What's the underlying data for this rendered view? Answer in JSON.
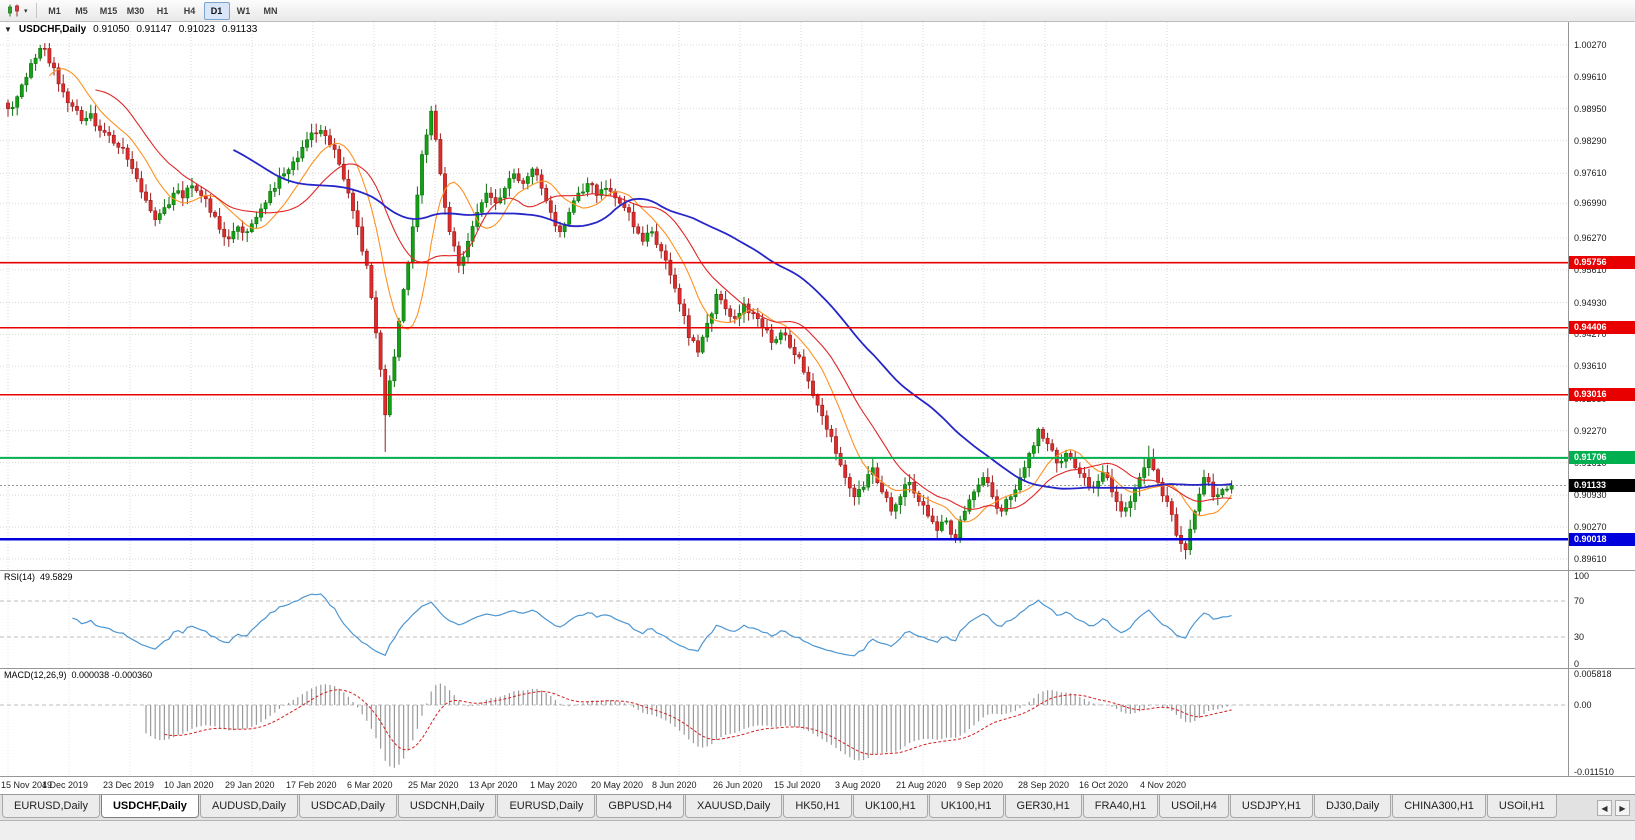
{
  "icons": {
    "one_click_toggle": "▼",
    "chart_dropdown_caret": "▾",
    "tab_scroll_left": "◀",
    "tab_scroll_right": "▶"
  },
  "toolbar": {
    "timeframes": [
      {
        "label": "M1",
        "active": false
      },
      {
        "label": "M5",
        "active": false
      },
      {
        "label": "M15",
        "active": false
      },
      {
        "label": "M30",
        "active": false
      },
      {
        "label": "H1",
        "active": false
      },
      {
        "label": "H4",
        "active": false
      },
      {
        "label": "D1",
        "active": true
      },
      {
        "label": "W1",
        "active": false
      },
      {
        "label": "MN",
        "active": false
      }
    ]
  },
  "chart": {
    "symbol_label": "USDCHF,Daily",
    "ohlc_open": "0.91050",
    "ohlc_high": "0.91147",
    "ohlc_low": "0.91023",
    "ohlc_close": "0.91133",
    "price_axis_labels": [
      "1.00270",
      "0.99610",
      "0.98950",
      "0.98290",
      "0.97610",
      "0.96990",
      "0.96270",
      "0.95610",
      "0.94930",
      "0.94270",
      "0.93610",
      "0.92930",
      "0.92270",
      "0.91610",
      "0.90930",
      "0.90270",
      "0.89610"
    ],
    "levels": [
      {
        "label": "0.95756",
        "value": 0.95756,
        "color": "#e80000",
        "width": 1.6
      },
      {
        "label": "0.94406",
        "value": 0.94406,
        "color": "#e80000",
        "width": 1.6
      },
      {
        "label": "0.93016",
        "value": 0.93016,
        "color": "#e80000",
        "width": 1.6
      },
      {
        "label": "0.91706",
        "value": 0.91706,
        "color": "#00b050",
        "width": 2
      },
      {
        "label": "0.90018",
        "value": 0.90018,
        "color": "#0000dd",
        "width": 2.4
      }
    ],
    "current_price": {
      "label": "0.91133",
      "value": 0.91133
    },
    "date_labels": [
      "15 Nov 2019",
      "4 Dec 2019",
      "23 Dec 2019",
      "10 Jan 2020",
      "29 Jan 2020",
      "17 Feb 2020",
      "6 Mar 2020",
      "25 Mar 2020",
      "13 Apr 2020",
      "1 May 2020",
      "20 May 2020",
      "8 Jun 2020",
      "26 Jun 2020",
      "15 Jul 2020",
      "3 Aug 2020",
      "21 Aug 2020",
      "9 Sep 2020",
      "28 Sep 2020",
      "16 Oct 2020",
      "4 Nov 2020"
    ]
  },
  "rsi": {
    "name": "RSI(14)",
    "value": "49.5829",
    "axis_labels": [
      "100",
      "70",
      "30",
      "0"
    ],
    "levels": [
      70,
      30
    ]
  },
  "macd": {
    "name": "MACD(12,26,9)",
    "values": "0.000038 -0.000360",
    "axis_labels": [
      "0.005818",
      "0.00",
      "-0.011510"
    ]
  },
  "tabs": [
    {
      "label": "EURUSD,Daily",
      "active": false
    },
    {
      "label": "USDCHF,Daily",
      "active": true
    },
    {
      "label": "AUDUSD,Daily",
      "active": false
    },
    {
      "label": "USDCAD,Daily",
      "active": false
    },
    {
      "label": "USDCNH,Daily",
      "active": false
    },
    {
      "label": "EURUSD,Daily",
      "active": false
    },
    {
      "label": "GBPUSD,H4",
      "active": false
    },
    {
      "label": "XAUUSD,Daily",
      "active": false
    },
    {
      "label": "HK50,H1",
      "active": false
    },
    {
      "label": "UK100,H1",
      "active": false
    },
    {
      "label": "UK100,H1",
      "active": false
    },
    {
      "label": "GER30,H1",
      "active": false
    },
    {
      "label": "FRA40,H1",
      "active": false
    },
    {
      "label": "USOil,H4",
      "active": false
    },
    {
      "label": "USDJPY,H1",
      "active": false
    },
    {
      "label": "DJ30,Daily",
      "active": false
    },
    {
      "label": "CHINA300,H1",
      "active": false
    },
    {
      "label": "USOil,H1",
      "active": false
    }
  ],
  "chart_data": {
    "type": "candlestick",
    "symbol": "USDCHF",
    "timeframe": "Daily",
    "ohlc_display": {
      "open": 0.9105,
      "high": 0.91147,
      "low": 0.91023,
      "close": 0.91133
    },
    "price_range": [
      0.8938,
      1.0075
    ],
    "x_range_dates": [
      "15 Nov 2019",
      "18 Nov 2020"
    ],
    "closes": [
      0.9895,
      0.992,
      0.996,
      1.0,
      1.002,
      0.998,
      0.993,
      0.99,
      0.987,
      0.9885,
      0.985,
      0.984,
      0.9815,
      0.979,
      0.975,
      0.9705,
      0.9665,
      0.969,
      0.972,
      0.971,
      0.9735,
      0.9715,
      0.968,
      0.9645,
      0.9625,
      0.965,
      0.964,
      0.967,
      0.97,
      0.973,
      0.976,
      0.9785,
      0.9815,
      0.9845,
      0.985,
      0.982,
      0.978,
      0.972,
      0.965,
      0.957,
      0.943,
      0.926,
      0.938,
      0.952,
      0.965,
      0.98,
      0.989,
      0.976,
      0.964,
      0.957,
      0.962,
      0.968,
      0.972,
      0.97,
      0.973,
      0.976,
      0.974,
      0.977,
      0.973,
      0.968,
      0.964,
      0.968,
      0.972,
      0.974,
      0.9715,
      0.973,
      0.971,
      0.969,
      0.965,
      0.962,
      0.964,
      0.96,
      0.955,
      0.949,
      0.942,
      0.939,
      0.945,
      0.951,
      0.948,
      0.946,
      0.949,
      0.947,
      0.944,
      0.941,
      0.943,
      0.94,
      0.938,
      0.933,
      0.928,
      0.923,
      0.918,
      0.913,
      0.909,
      0.911,
      0.915,
      0.91,
      0.906,
      0.909,
      0.912,
      0.908,
      0.905,
      0.902,
      0.904,
      0.9005,
      0.906,
      0.91,
      0.913,
      0.909,
      0.906,
      0.909,
      0.913,
      0.918,
      0.923,
      0.92,
      0.916,
      0.918,
      0.915,
      0.913,
      0.911,
      0.914,
      0.91,
      0.906,
      0.908,
      0.913,
      0.917,
      0.912,
      0.908,
      0.901,
      0.898,
      0.906,
      0.913,
      0.909,
      0.9105,
      0.9113
    ],
    "spikes": [
      {
        "i": 41,
        "low": 0.9183
      },
      {
        "i": 46,
        "high": 0.9901
      },
      {
        "i": 103,
        "low": 0.8994
      },
      {
        "i": 124,
        "high": 0.9196
      },
      {
        "i": 128,
        "low": 0.896
      }
    ],
    "horizontal_levels": [
      0.95756,
      0.94406,
      0.93016,
      0.91706,
      0.90018
    ],
    "current_price": 0.91133,
    "moving_averages": [
      {
        "period": 10,
        "color": "#ff9122"
      },
      {
        "period": 20,
        "color": "#e02828"
      },
      {
        "period": 50,
        "color": "#2626c8"
      }
    ],
    "indicators": [
      {
        "name": "RSI",
        "period": 14,
        "last": 49.5829,
        "range": [
          0,
          100
        ],
        "levels": [
          70,
          30
        ]
      },
      {
        "name": "MACD",
        "fast": 12,
        "slow": 26,
        "signal": 9,
        "last_macd": 3.8e-05,
        "last_signal": -0.00036,
        "scale_max": 0.005818,
        "scale_min": -0.01151
      }
    ]
  }
}
